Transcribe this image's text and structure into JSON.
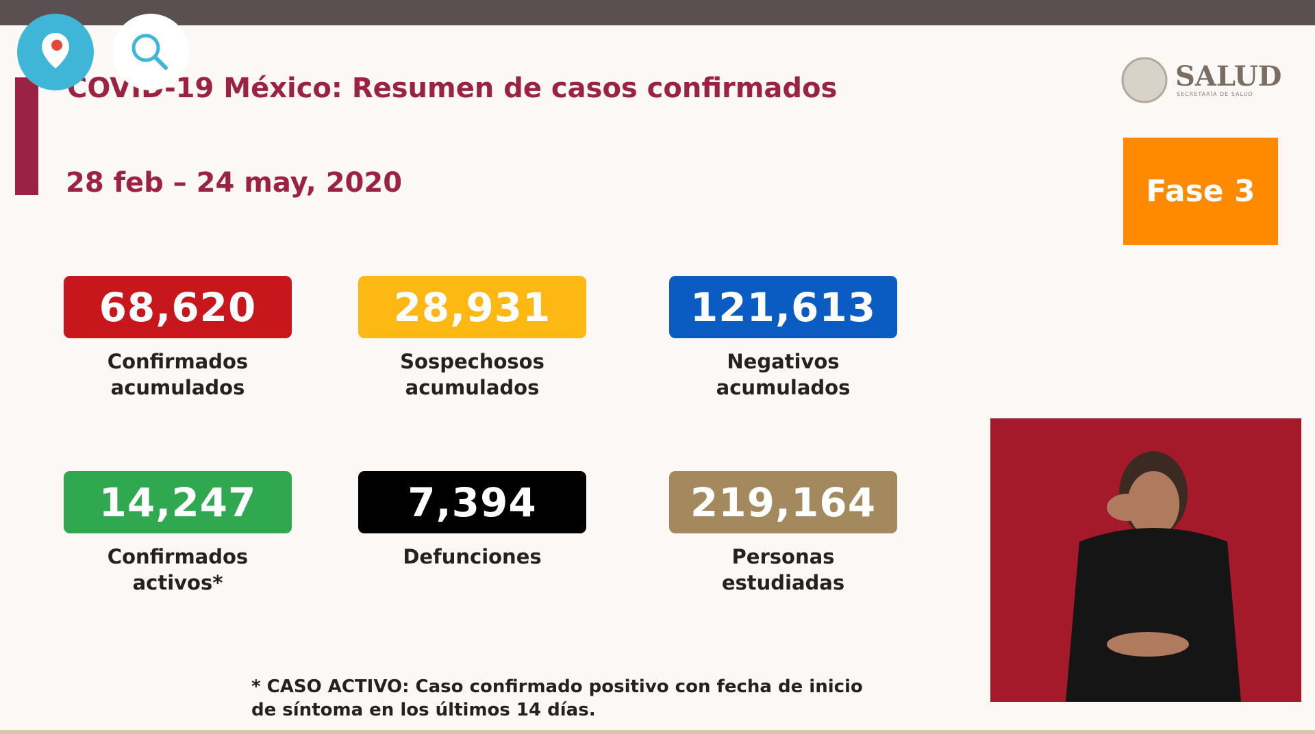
{
  "header": {
    "title": "COVID-19 México: Resumen de casos confirmados",
    "date_range": "28 feb – 24 may, 2020"
  },
  "logo": {
    "name": "SALUD",
    "subtitle": "SECRETARÍA DE SALUD"
  },
  "phase": "Fase 3",
  "stats": [
    {
      "value": "68,620",
      "label": [
        "Confirmados",
        "acumulados"
      ],
      "color": "#c8161d"
    },
    {
      "value": "28,931",
      "label": [
        "Sospechosos",
        "acumulados"
      ],
      "color": "#fdb813"
    },
    {
      "value": "121,613",
      "label": [
        "Negativos",
        "acumulados"
      ],
      "color": "#0a5cc2"
    },
    {
      "value": "14,247",
      "label": [
        "Confirmados",
        "activos*"
      ],
      "color": "#2fa84f"
    },
    {
      "value": "7,394",
      "label": [
        "Defunciones"
      ],
      "color": "#000000"
    },
    {
      "value": "219,164",
      "label": [
        "Personas",
        "estudiadas"
      ],
      "color": "#a5895e"
    }
  ],
  "footnote": [
    "* CASO ACTIVO: Caso confirmado positivo con fecha de inicio",
    "de síntoma en los últimos 14 días."
  ]
}
